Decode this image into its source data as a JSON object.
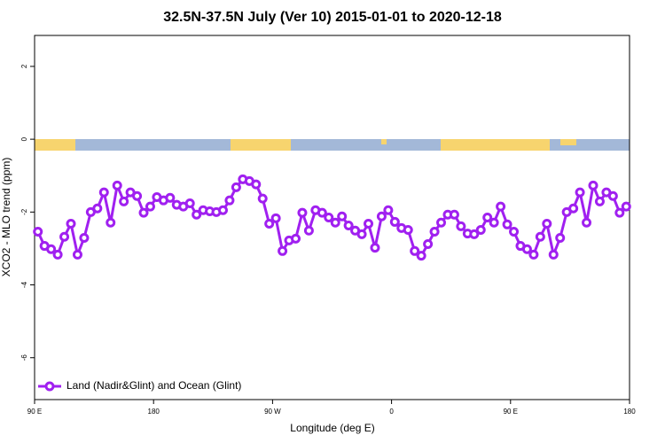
{
  "chart_data": {
    "type": "line",
    "title": "32.5N-37.5N July (Ver 10)   2015-01-01 to 2020-12-18",
    "xlabel": "Longitude (deg E)",
    "ylabel": "XCO2 - MLO trend (ppm)",
    "xlim": [
      90,
      540
    ],
    "ylim": [
      -7.15,
      2.85
    ],
    "xticks": [
      {
        "value": 90,
        "label": "90 E"
      },
      {
        "value": 180,
        "label": "180"
      },
      {
        "value": 270,
        "label": "90 W"
      },
      {
        "value": 360,
        "label": "0"
      },
      {
        "value": 450,
        "label": "90 E"
      },
      {
        "value": 540,
        "label": "180"
      }
    ],
    "yticks": [
      -6,
      -4,
      -2,
      0,
      2
    ],
    "legend": "bottom-left",
    "x": [
      92.5,
      97.5,
      102.5,
      107.5,
      112.5,
      117.5,
      122.5,
      127.5,
      132.5,
      137.5,
      142.5,
      147.5,
      152.5,
      157.5,
      162.5,
      167.5,
      172.5,
      177.5,
      182.5,
      187.5,
      192.5,
      197.5,
      202.5,
      207.5,
      212.5,
      217.5,
      222.5,
      227.5,
      232.5,
      237.5,
      242.5,
      247.5,
      252.5,
      257.5,
      262.5,
      267.5,
      272.5,
      277.5,
      282.5,
      287.5,
      292.5,
      297.5,
      302.5,
      307.5,
      312.5,
      317.5,
      322.5,
      327.5,
      332.5,
      337.5,
      342.5,
      347.5,
      352.5,
      357.5,
      362.5,
      367.5,
      372.5,
      377.5,
      382.5,
      387.5,
      392.5,
      397.5,
      402.5,
      407.5,
      412.5,
      417.5,
      422.5,
      427.5,
      432.5,
      437.5,
      442.5,
      447.5,
      452.5,
      457.5,
      462.5,
      467.5,
      472.5,
      477.5,
      482.5,
      487.5,
      492.5,
      497.5,
      502.5,
      507.5,
      512.5,
      517.5,
      522.5,
      527.5,
      532.5,
      537.5
    ],
    "series": [
      {
        "name": "Land (Nadir&Glint) and Ocean (Glint)",
        "color": "#a020f0",
        "values": [
          -2.54,
          -2.93,
          -3.02,
          -3.17,
          -2.68,
          -2.32,
          -3.17,
          -2.71,
          -2.0,
          -1.9,
          -1.46,
          -2.29,
          -1.27,
          -1.71,
          -1.46,
          -1.56,
          -2.02,
          -1.85,
          -1.59,
          -1.68,
          -1.61,
          -1.8,
          -1.85,
          -1.76,
          -2.07,
          -1.95,
          -1.98,
          -2.0,
          -1.95,
          -1.68,
          -1.32,
          -1.1,
          -1.15,
          -1.24,
          -1.63,
          -2.32,
          -2.17,
          -3.07,
          -2.78,
          -2.73,
          -2.02,
          -2.51,
          -1.95,
          -2.02,
          -2.15,
          -2.29,
          -2.12,
          -2.37,
          -2.51,
          -2.61,
          -2.32,
          -2.98,
          -2.12,
          -1.95,
          -2.27,
          -2.44,
          -2.49,
          -3.07,
          -3.2,
          -2.88,
          -2.54,
          -2.29,
          -2.07,
          -2.07,
          -2.39,
          -2.59,
          -2.61,
          -2.49,
          -2.15,
          -2.29,
          -1.85,
          -2.34,
          -2.54,
          -2.93,
          -3.02,
          -3.17,
          -2.68,
          -2.32,
          -3.17,
          -2.71,
          -2.0,
          -1.9,
          -1.46,
          -2.29,
          -1.27,
          -1.71,
          -1.46,
          -1.56,
          -2.02,
          -1.85
        ]
      }
    ]
  }
}
